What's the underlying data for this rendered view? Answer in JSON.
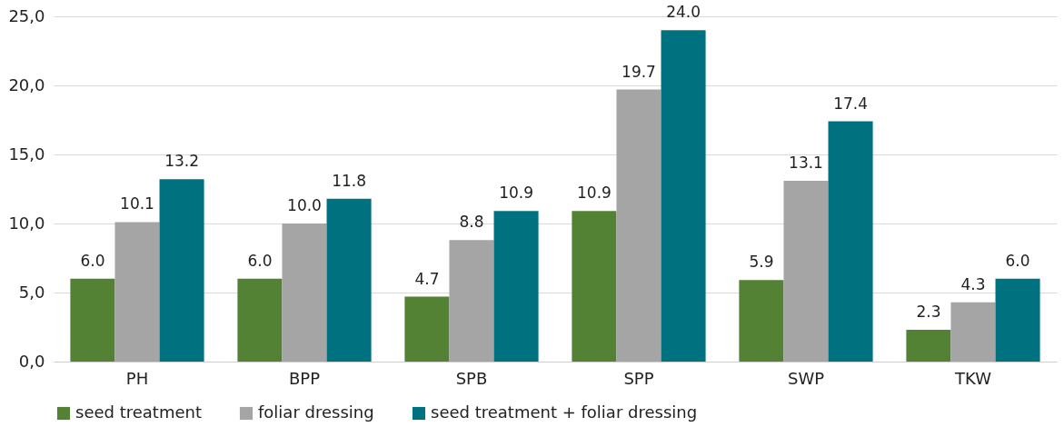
{
  "chart_data": {
    "type": "bar",
    "categories": [
      "PH",
      "BPP",
      "SPB",
      "SPP",
      "SWP",
      "TKW"
    ],
    "series": [
      {
        "name": "seed treatment",
        "color": "#548235",
        "values": [
          6,
          6,
          4.7,
          10.9,
          5.9,
          2.3
        ],
        "value_labels": [
          "6.0",
          "6.0",
          "4.7",
          "10.9",
          "5.9",
          "2.3"
        ]
      },
      {
        "name": "foliar dressing",
        "color": "#a5a5a5",
        "values": [
          10.1,
          10,
          8.8,
          19.7,
          13.1,
          4.3
        ],
        "value_labels": [
          "10.1",
          "10.0",
          "8.8",
          "19.7",
          "13.1",
          "4.3"
        ]
      },
      {
        "name": "seed treatment + foliar dressing",
        "color": "#00727f",
        "values": [
          13.2,
          11.8,
          10.9,
          24,
          17.4,
          6
        ],
        "value_labels": [
          "13.2",
          "11.8",
          "10.9",
          "24.0",
          "17.4",
          "6.0"
        ]
      }
    ],
    "ylim": [
      0,
      25
    ],
    "yticks": [
      {
        "value": 0,
        "label": "0,0"
      },
      {
        "value": 5,
        "label": "5,0"
      },
      {
        "value": 10,
        "label": "10,0"
      },
      {
        "value": 15,
        "label": "15,0"
      },
      {
        "value": 20,
        "label": "20,0"
      },
      {
        "value": 25,
        "label": "25,0"
      }
    ],
    "grid": "y",
    "legend": "bottom"
  }
}
